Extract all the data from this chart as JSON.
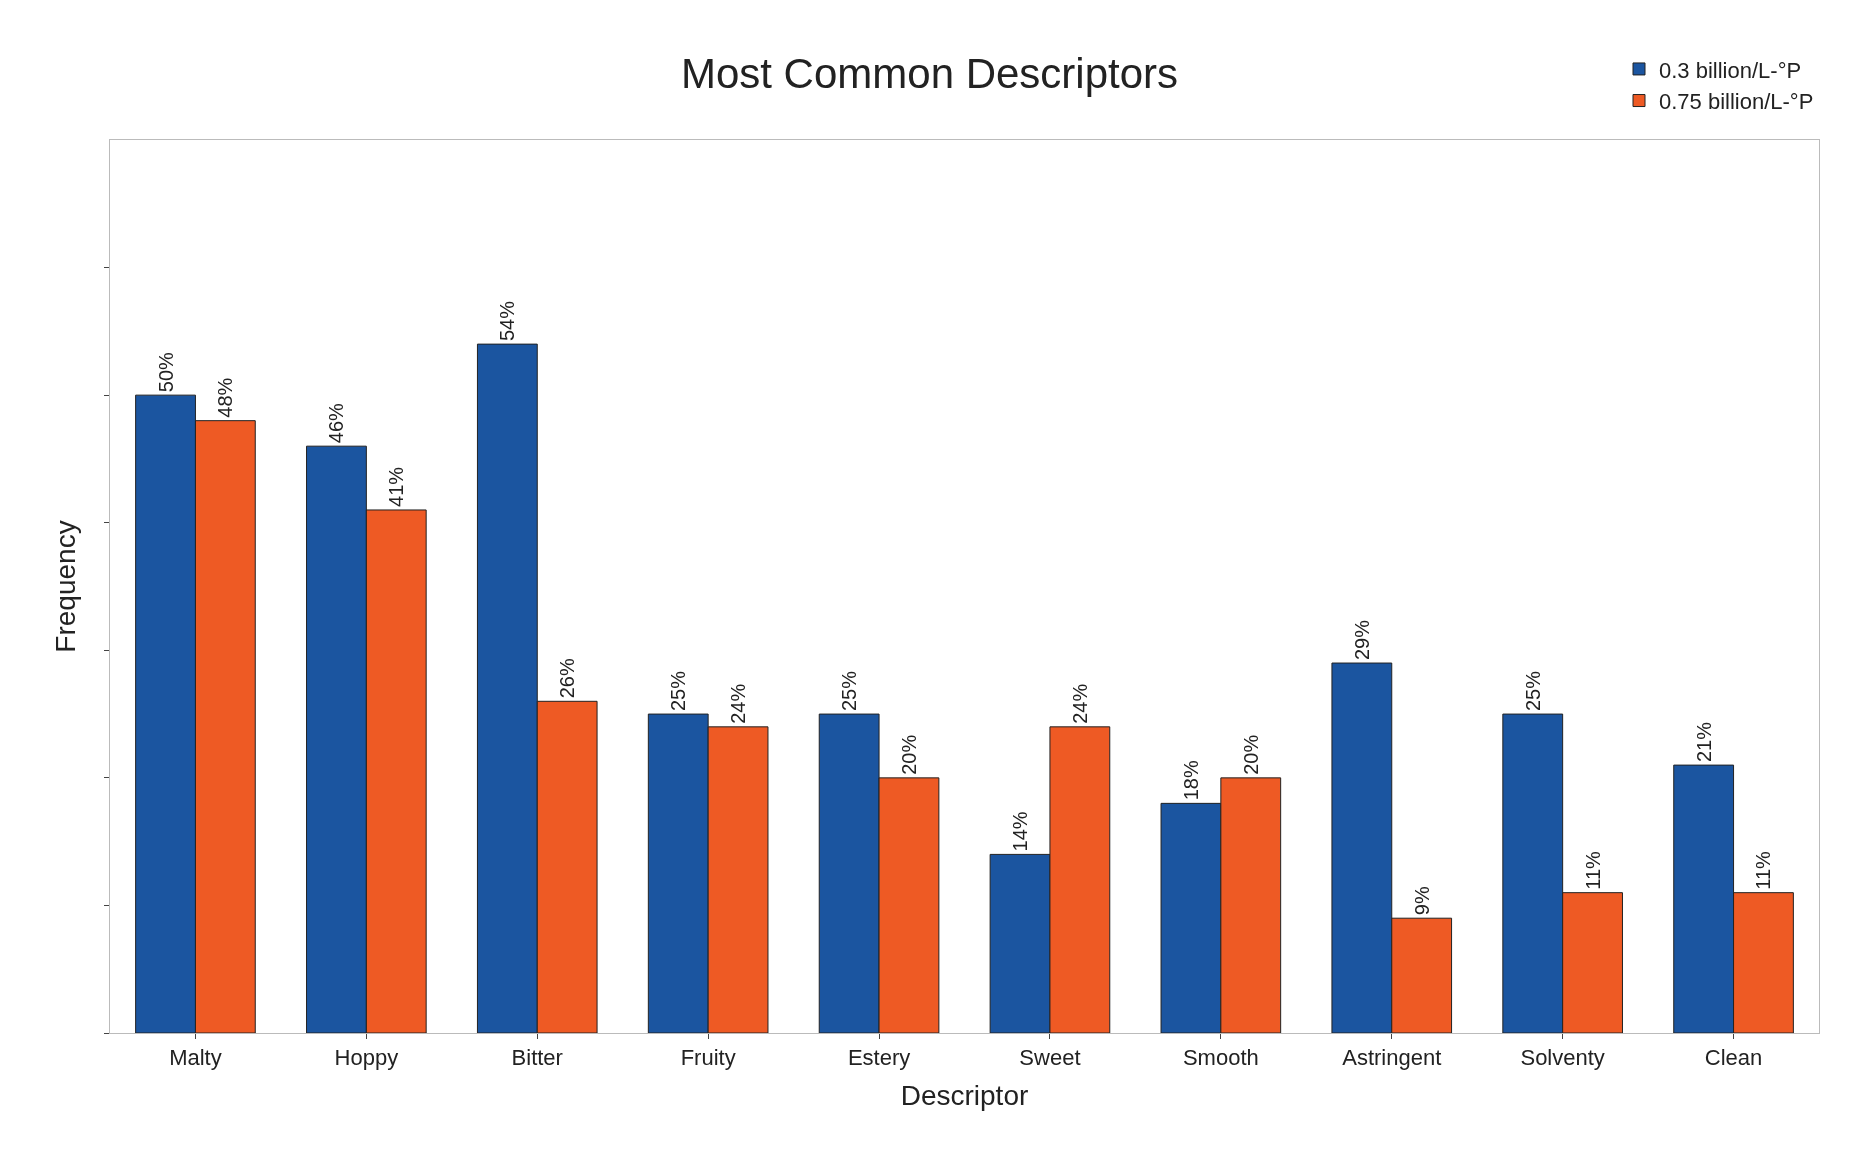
{
  "chart_data": {
    "type": "bar",
    "title": "Most Common Descriptors",
    "xlabel": "Descriptor",
    "ylabel": "Frequency",
    "categories": [
      "Malty",
      "Hoppy",
      "Bitter",
      "Fruity",
      "Estery",
      "Sweet",
      "Smooth",
      "Astringent",
      "Solventy",
      "Clean"
    ],
    "series": [
      {
        "name": "0.3 billion/L-°P",
        "color": "#1b55a0",
        "values": [
          50,
          46,
          54,
          25,
          25,
          14,
          18,
          29,
          25,
          21
        ],
        "value_labels": [
          "50%",
          "46%",
          "54%",
          "25%",
          "25%",
          "14%",
          "18%",
          "29%",
          "25%",
          "21%"
        ]
      },
      {
        "name": "0.75 billion/L-°P",
        "color": "#ee5a24",
        "values": [
          48,
          41,
          26,
          24,
          20,
          24,
          20,
          9,
          11,
          11
        ],
        "value_labels": [
          "48%",
          "41%",
          "26%",
          "24%",
          "20%",
          "24%",
          "20%",
          "9%",
          "11%",
          "11%"
        ]
      }
    ],
    "ylim": [
      0,
      70
    ],
    "yticks": [
      {
        "value": 0,
        "label": null
      },
      {
        "value": 10,
        "label": null
      },
      {
        "value": 20,
        "label": null
      },
      {
        "value": 30,
        "label": null
      },
      {
        "value": 40,
        "label": null
      },
      {
        "value": 50,
        "label": null
      },
      {
        "value": 60,
        "label": null
      }
    ],
    "legend": "top right"
  }
}
